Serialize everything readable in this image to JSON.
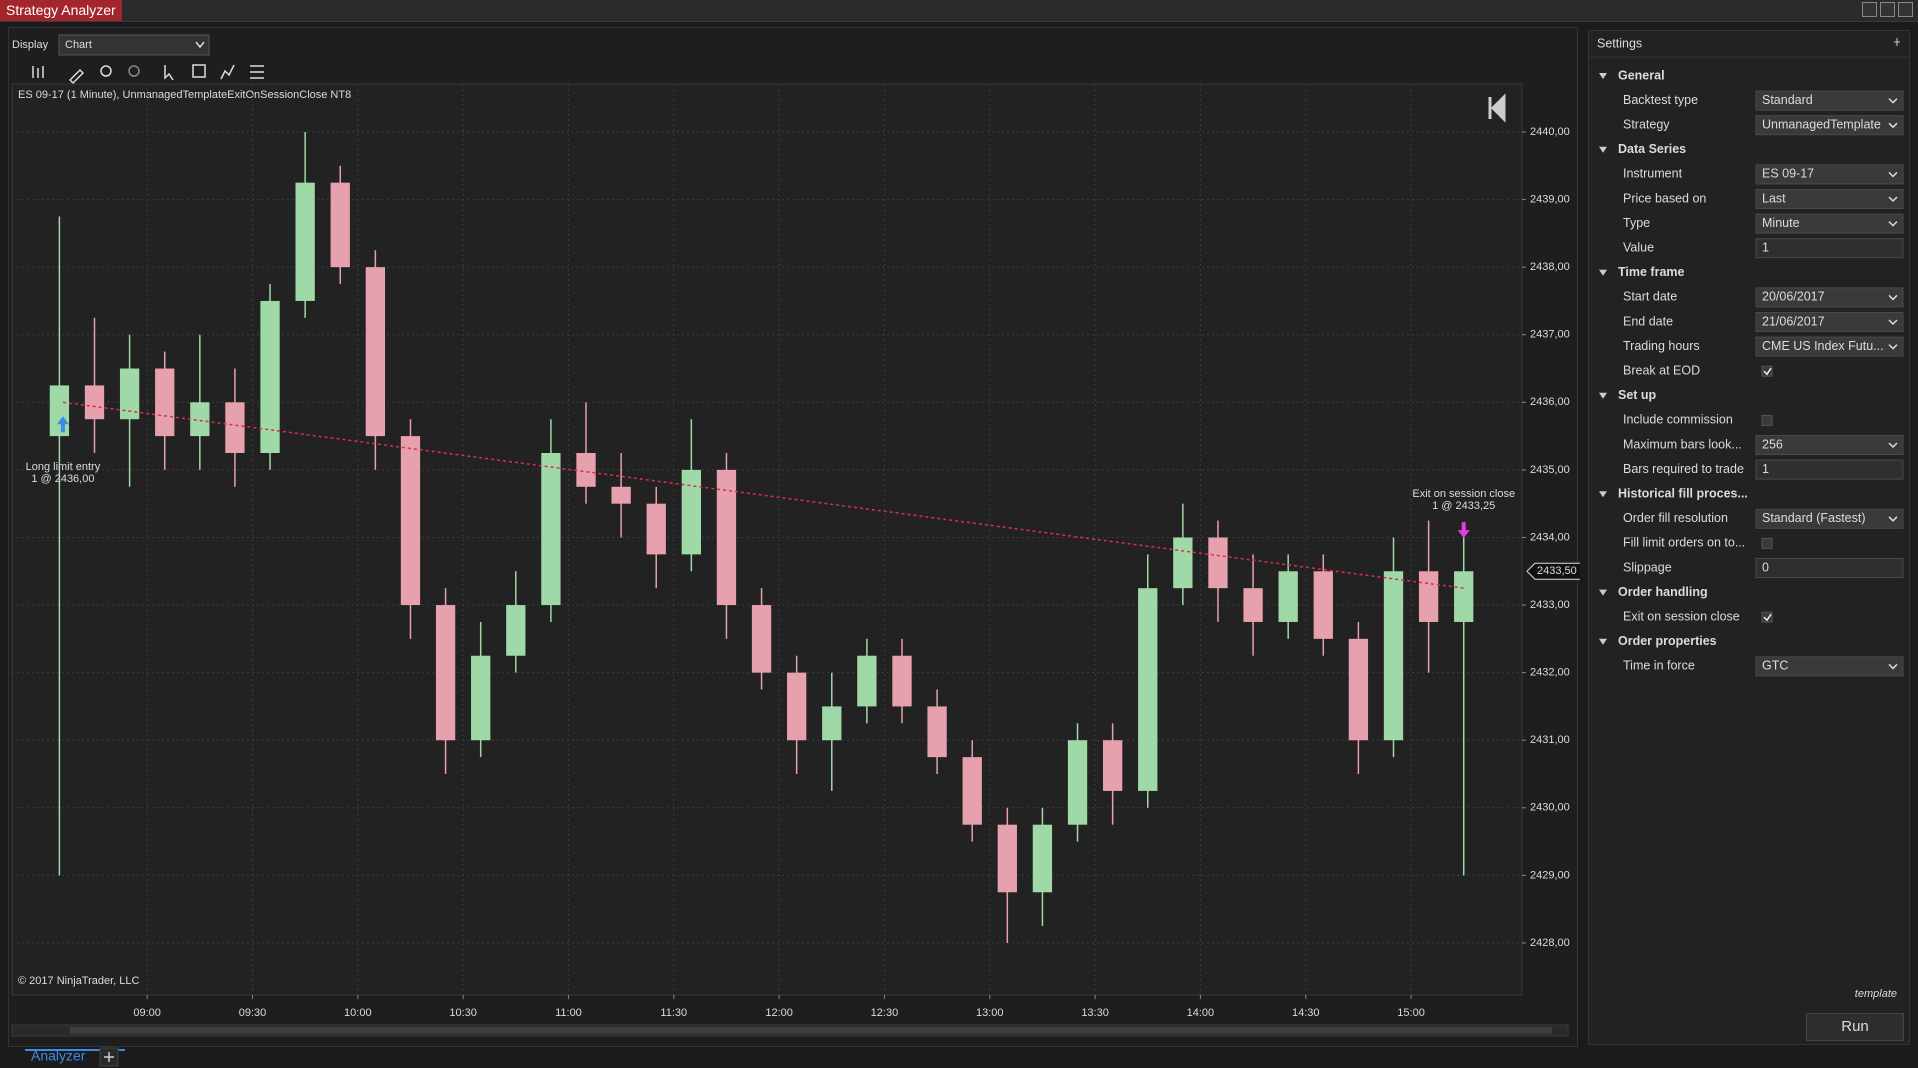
{
  "window": {
    "title": "Strategy Analyzer",
    "display_label": "Display",
    "display_value": "Chart",
    "tab": "Analyzer"
  },
  "chart_data": {
    "type": "candlestick",
    "title": "ES 09-17 (1 Minute), UnmanagedTemplateExitOnSessionClose NT8",
    "copyright": "© 2017 NinjaTrader, LLC",
    "x": [
      515,
      525,
      535,
      545,
      555,
      565,
      575,
      585,
      595,
      605,
      615,
      625,
      635,
      645,
      655,
      665,
      675,
      685,
      695,
      705,
      715,
      725,
      735,
      745,
      755,
      765,
      775,
      785,
      795,
      805,
      815,
      825,
      835,
      845,
      855,
      865,
      875,
      885,
      895,
      905,
      915
    ],
    "open": [
      2435.5,
      2436.25,
      2435.75,
      2436.5,
      2435.5,
      2436,
      2435.25,
      2437.5,
      2439.25,
      2438,
      2435.5,
      2433,
      2431,
      2432.25,
      2433,
      2435.25,
      2434.75,
      2434.5,
      2433.75,
      2435,
      2433,
      2432,
      2431,
      2431.5,
      2432.25,
      2431.5,
      2430.75,
      2429.75,
      2428.75,
      2429.75,
      2431,
      2430.25,
      2433.25,
      2434,
      2433.25,
      2432.75,
      2433.5,
      2432.5,
      2431,
      2433.5,
      2432.75
    ],
    "high": [
      2438.75,
      2437.25,
      2437,
      2436.75,
      2437,
      2436.5,
      2437.75,
      2440,
      2439.5,
      2438.25,
      2435.75,
      2433.25,
      2432.75,
      2433.5,
      2435.75,
      2436,
      2435.25,
      2434.75,
      2435.75,
      2435.25,
      2433.25,
      2432.25,
      2432,
      2432.5,
      2432.5,
      2431.75,
      2431,
      2430,
      2430,
      2431.25,
      2431.25,
      2433.75,
      2434.5,
      2434.25,
      2433.75,
      2433.75,
      2433.75,
      2432.75,
      2434,
      2434.25,
      2434
    ],
    "low": [
      2429,
      2435.25,
      2434.75,
      2435,
      2435,
      2434.75,
      2435,
      2437.25,
      2437.75,
      2435,
      2432.5,
      2430.5,
      2430.75,
      2432,
      2432.75,
      2434.5,
      2434,
      2433.25,
      2433.5,
      2432.5,
      2431.75,
      2430.5,
      2430.25,
      2431.25,
      2431.25,
      2430.5,
      2429.5,
      2428,
      2428.25,
      2429.5,
      2429.75,
      2430,
      2433,
      2432.75,
      2432.25,
      2432.5,
      2432.25,
      2430.5,
      2430.75,
      2432,
      2429
    ],
    "close": [
      2436.25,
      2435.75,
      2436.5,
      2435.5,
      2436,
      2435.25,
      2437.5,
      2439.25,
      2438,
      2435.5,
      2433,
      2431,
      2432.25,
      2433,
      2435.25,
      2434.75,
      2434.5,
      2433.75,
      2435,
      2433,
      2432,
      2431,
      2431.5,
      2432.25,
      2431.5,
      2430.75,
      2429.75,
      2428.75,
      2429.75,
      2431,
      2430.25,
      2433.25,
      2434,
      2433.25,
      2432.75,
      2433.5,
      2432.5,
      2431,
      2433.5,
      2432.75,
      2433.5
    ],
    "up_color": "#9fd9a8",
    "down_color": "#e7a0ad",
    "xlim": [
      501.5,
      931.6
    ],
    "ylim": [
      2427.23,
      2440.71
    ],
    "xticks": [
      {
        "value": 540,
        "label": "09:00"
      },
      {
        "value": 570,
        "label": "09:30"
      },
      {
        "value": 600,
        "label": "10:00"
      },
      {
        "value": 630,
        "label": "10:30"
      },
      {
        "value": 660,
        "label": "11:00"
      },
      {
        "value": 690,
        "label": "11:30"
      },
      {
        "value": 720,
        "label": "12:00"
      },
      {
        "value": 750,
        "label": "12:30"
      },
      {
        "value": 780,
        "label": "13:00"
      },
      {
        "value": 810,
        "label": "13:30"
      },
      {
        "value": 840,
        "label": "14:00"
      },
      {
        "value": 870,
        "label": "14:30"
      },
      {
        "value": 900,
        "label": "15:00"
      }
    ],
    "yticks": [
      {
        "value": 2428,
        "label": "2428,00"
      },
      {
        "value": 2429,
        "label": "2429,00"
      },
      {
        "value": 2430,
        "label": "2430,00"
      },
      {
        "value": 2431,
        "label": "2431,00"
      },
      {
        "value": 2432,
        "label": "2432,00"
      },
      {
        "value": 2433,
        "label": "2433,00"
      },
      {
        "value": 2434,
        "label": "2434,00"
      },
      {
        "value": 2435,
        "label": "2435,00"
      },
      {
        "value": 2436,
        "label": "2436,00"
      },
      {
        "value": 2437,
        "label": "2437,00"
      },
      {
        "value": 2438,
        "label": "2438,00"
      },
      {
        "value": 2439,
        "label": "2439,00"
      },
      {
        "value": 2440,
        "label": "2440,00"
      }
    ],
    "grid": true,
    "last_price": {
      "value": 2433.5,
      "label": "2433,50"
    },
    "trades": [
      {
        "entry_label": "Long limit entry",
        "entry_text": "1 @ 2436,00",
        "entry_x": 516,
        "entry_price": 2436,
        "exit_label": "Exit on session close",
        "exit_text": "1 @ 2433,25",
        "exit_x": 915,
        "exit_price": 2433.25,
        "line_color": "#d8304a"
      }
    ]
  },
  "settings": {
    "title": "Settings",
    "footer": "template",
    "button": "Run",
    "sections": [
      {
        "title": "General",
        "rows": [
          {
            "label": "Backtest type",
            "value": "Standard",
            "dropdown": true
          },
          {
            "label": "Strategy",
            "value": "UnmanagedTemplate",
            "dropdown": true
          }
        ]
      },
      {
        "title": "Data Series",
        "rows": [
          {
            "label": "Instrument",
            "value": "ES 09-17",
            "dropdown": true
          },
          {
            "label": "Price based on",
            "value": "Last",
            "dropdown": true
          },
          {
            "label": "Type",
            "value": "Minute",
            "dropdown": true
          },
          {
            "label": "Value",
            "value": 1,
            "dropdown": false
          }
        ]
      },
      {
        "title": "Time frame",
        "rows": [
          {
            "label": "Start date",
            "value": "20/06/2017",
            "dropdown": true
          },
          {
            "label": "End date",
            "value": "21/06/2017",
            "dropdown": true
          },
          {
            "label": "Trading hours",
            "value": "CME US Index Futu...",
            "dropdown": true
          },
          {
            "label": "Break at EOD",
            "checked": true
          }
        ]
      },
      {
        "title": "Set up",
        "rows": [
          {
            "label": "Include commission",
            "checked": false
          },
          {
            "label": "Maximum bars look...",
            "value": 256,
            "dropdown": true
          },
          {
            "label": "Bars required to trade",
            "value": 1,
            "dropdown": false
          }
        ]
      },
      {
        "title": "Historical fill proces...",
        "rows": [
          {
            "label": "Order fill resolution",
            "value": "Standard (Fastest)",
            "dropdown": true
          },
          {
            "label": "Fill limit orders on to...",
            "checked": false
          },
          {
            "label": "Slippage",
            "value": 0,
            "dropdown": false
          }
        ]
      },
      {
        "title": "Order handling",
        "rows": [
          {
            "label": "Exit on session close",
            "checked": true
          }
        ]
      },
      {
        "title": "Order properties",
        "rows": [
          {
            "label": "Time in force",
            "value": "GTC",
            "dropdown": true
          }
        ]
      }
    ]
  }
}
